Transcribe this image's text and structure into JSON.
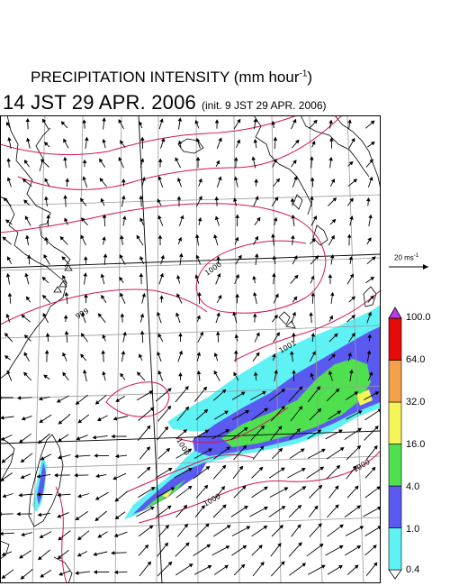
{
  "title": {
    "main": "PRECIPITATION INTENSITY (mm hour",
    "exponent": "-1",
    "close": ")",
    "valid_time": "14 JST 29 APR. 2006",
    "init_time": "(init. 9 JST 29 APR. 2006)"
  },
  "wind_scale": {
    "label": "20 ms",
    "exponent": "-1"
  },
  "colorbar": {
    "levels": [
      "0.4",
      "1.0",
      "4.0",
      "16.0",
      "32.0",
      "64.0",
      "100.0"
    ],
    "colors": [
      "#ffffff",
      "#5ff2f5",
      "#5a5af0",
      "#4fe04f",
      "#f5f55a",
      "#f5a04a",
      "#e60a0a",
      "#b93ce6"
    ]
  },
  "isobars": {
    "labels": [
      "1000",
      "999",
      "1000",
      "1001",
      "1000",
      "1000"
    ],
    "color": "#d4145a"
  },
  "colors": {
    "coast": "#000000",
    "grid": "#9a9a9a",
    "wind_vectors": "#000000"
  }
}
